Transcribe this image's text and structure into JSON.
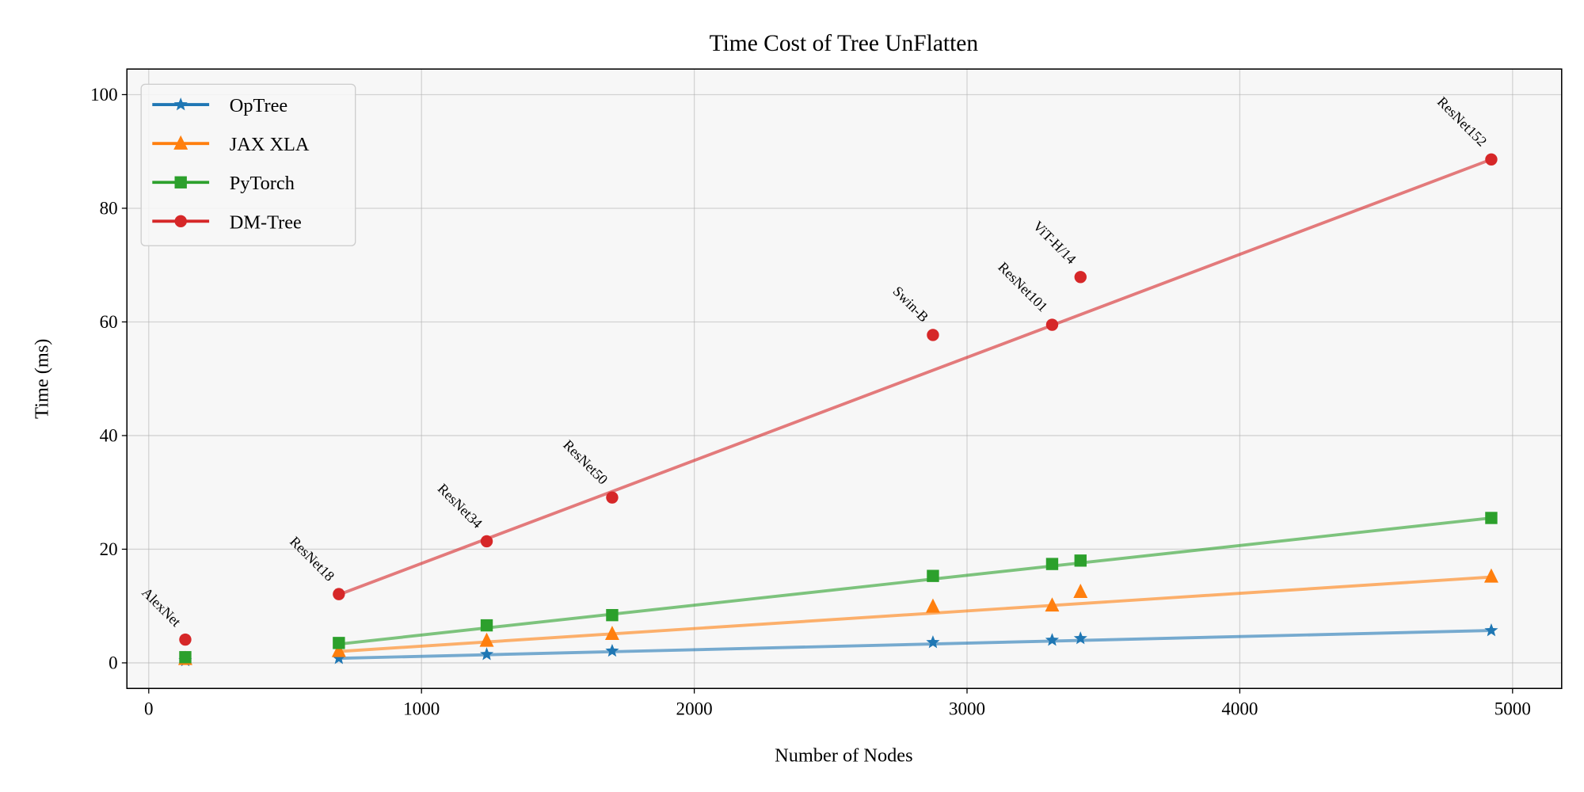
{
  "chart_data": {
    "type": "line",
    "title": "Time Cost of Tree UnFlatten",
    "xlabel": "Number of Nodes",
    "ylabel": "Time (ms)",
    "xlim": [
      -80,
      5180
    ],
    "ylim": [
      -4.5,
      104.5
    ],
    "xticks": [
      0,
      1000,
      2000,
      3000,
      4000,
      5000
    ],
    "yticks": [
      0,
      20,
      40,
      60,
      80,
      100
    ],
    "grid": true,
    "legend_position": "top-left",
    "models": [
      "AlexNet",
      "ResNet18",
      "ResNet34",
      "ResNet50",
      "Swin-B",
      "ResNet101",
      "ViT-H/14",
      "ResNet152"
    ],
    "x": [
      134,
      697,
      1239,
      1699,
      2875,
      3312,
      3416,
      4922
    ],
    "series": [
      {
        "name": "OpTree",
        "color": "#1f77b4",
        "marker": "star",
        "values": [
          0.4,
          0.8,
          1.5,
          2.1,
          3.6,
          4.0,
          4.3,
          5.7
        ],
        "trend": [
          0.8,
          5.7
        ]
      },
      {
        "name": "JAX XLA",
        "color": "#ff7f0e",
        "marker": "triangle",
        "values": [
          0.7,
          2.1,
          3.9,
          5.1,
          9.9,
          10.1,
          12.5,
          15.2
        ],
        "trend": [
          2.0,
          15.1
        ]
      },
      {
        "name": "PyTorch",
        "color": "#2ca02c",
        "marker": "square",
        "values": [
          1.0,
          3.5,
          6.6,
          8.4,
          15.3,
          17.4,
          18.0,
          25.5
        ],
        "trend": [
          3.3,
          25.5
        ]
      },
      {
        "name": "DM-Tree",
        "color": "#d62728",
        "marker": "circle",
        "values": [
          4.1,
          12.1,
          21.4,
          29.1,
          57.7,
          59.5,
          67.9,
          88.6
        ],
        "trend": [
          12.0,
          88.6
        ]
      }
    ],
    "label_series": "DM-Tree"
  }
}
